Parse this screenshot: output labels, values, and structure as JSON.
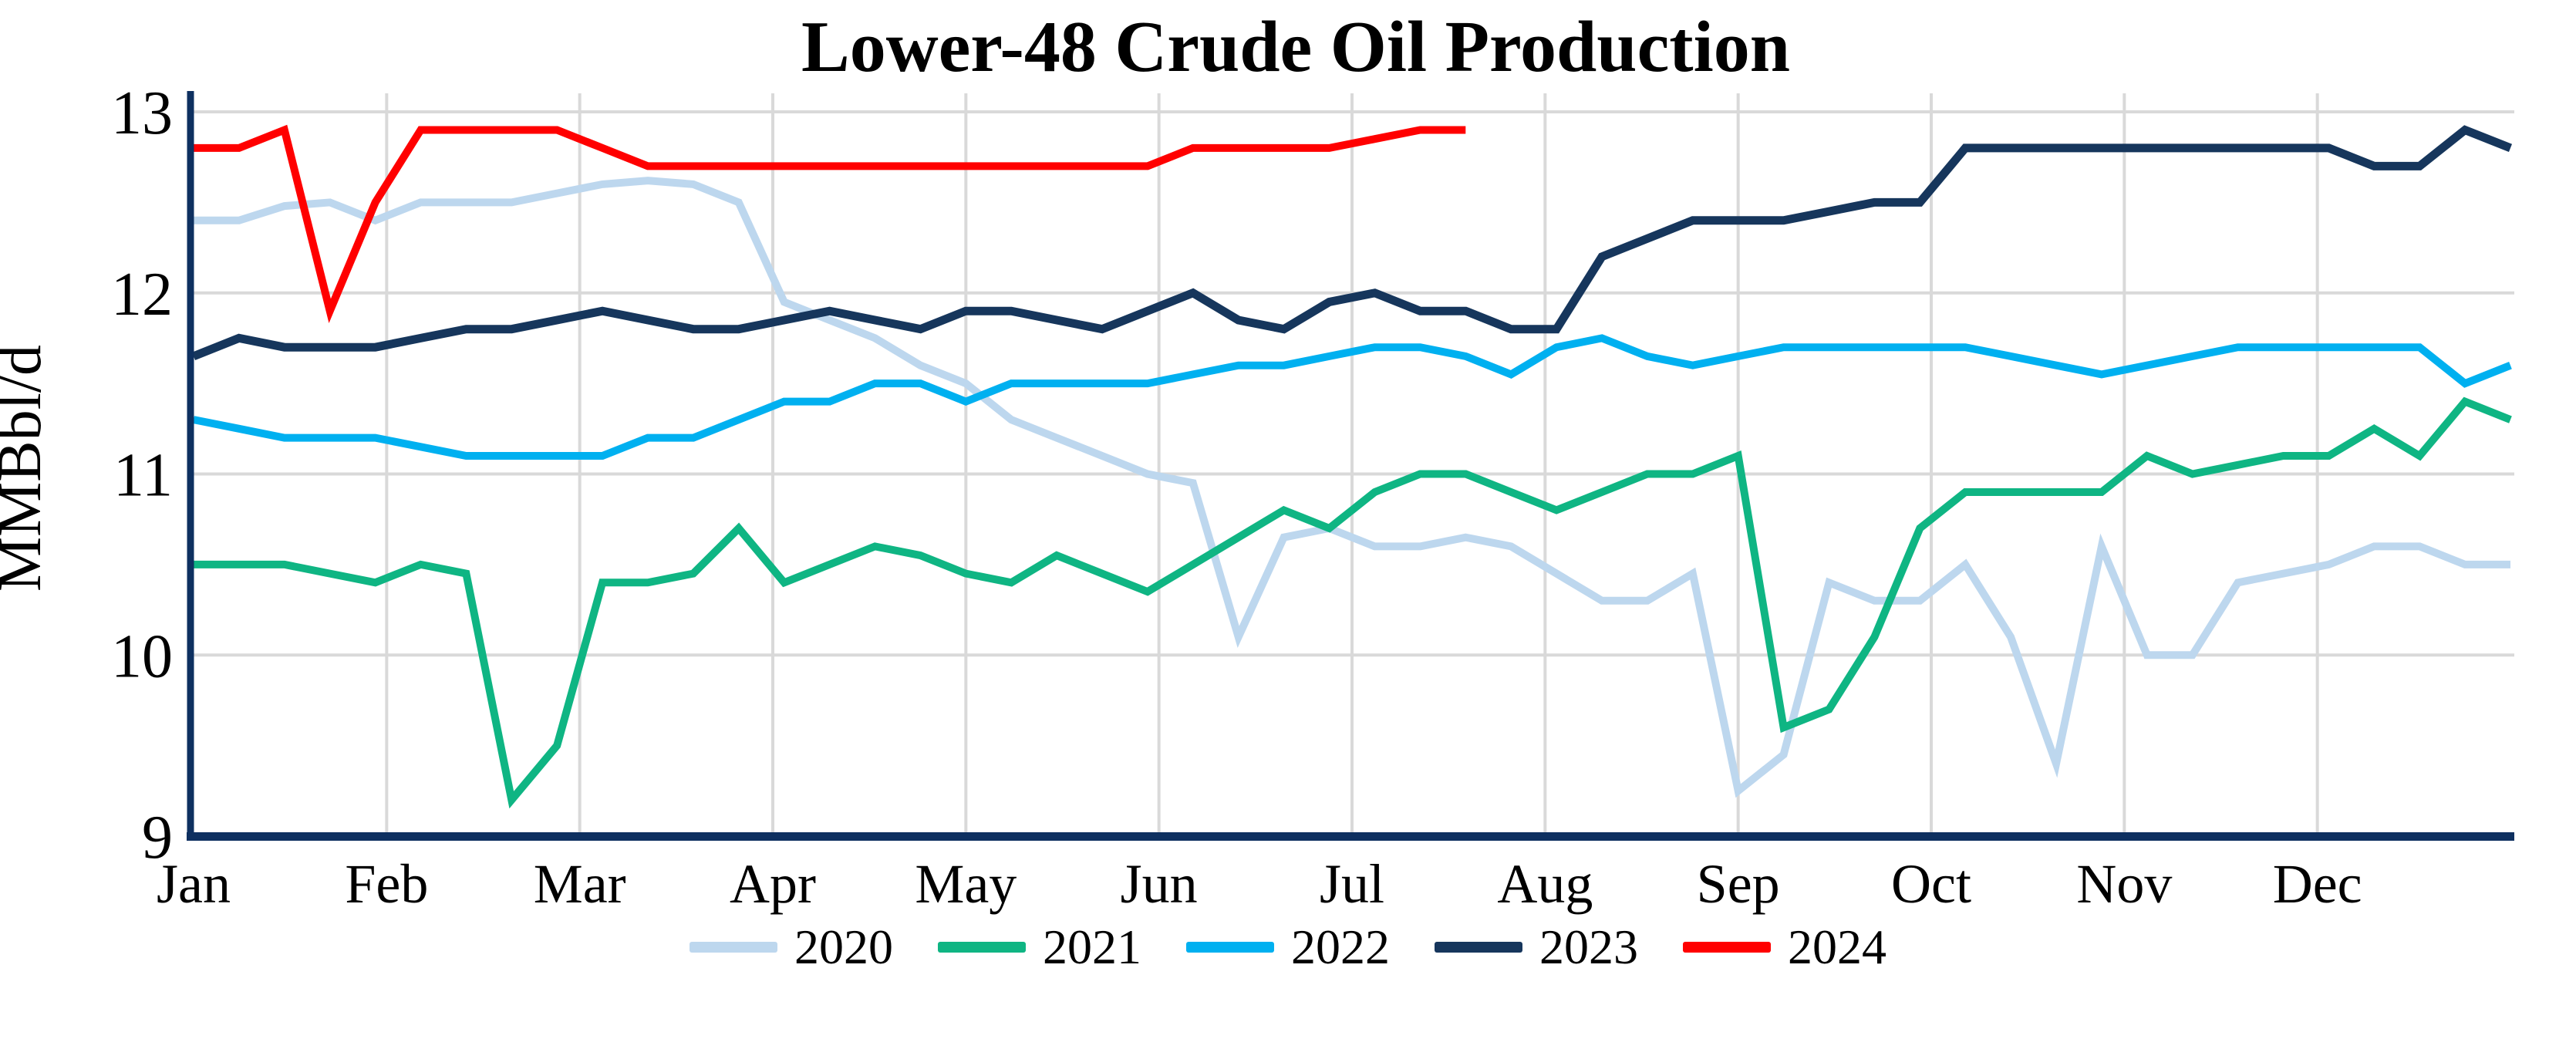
{
  "title": "Lower-48 Crude Oil Production",
  "y_axis": {
    "label": "MMBbl/d",
    "ticks": [
      13,
      12,
      11,
      10,
      9
    ],
    "min": 9,
    "max": 13
  },
  "x_axis": {
    "months": [
      "Jan",
      "Feb",
      "Mar",
      "Apr",
      "May",
      "Jun",
      "Jul",
      "Aug",
      "Sep",
      "Oct",
      "Nov",
      "Dec"
    ]
  },
  "legend": [
    "2020",
    "2021",
    "2022",
    "2023",
    "2024"
  ],
  "colors": {
    "grid": "#D9D9D9",
    "axis": "#0E3060",
    "text": "#000000",
    "background": "#FFFFFF",
    "series_2020": "#BDD7EE",
    "series_2021": "#0FB583",
    "series_2022": "#00B0F0",
    "series_2023": "#16365C",
    "series_2024": "#FF0000"
  },
  "chart_data": {
    "type": "line",
    "title": "Lower-48 Crude Oil Production",
    "xlabel": "",
    "ylabel": "MMBbl/d",
    "ylim": [
      9,
      13
    ],
    "yticks": [
      9,
      10,
      11,
      12,
      13
    ],
    "x_categories": [
      "Jan",
      "Feb",
      "Mar",
      "Apr",
      "May",
      "Jun",
      "Jul",
      "Aug",
      "Sep",
      "Oct",
      "Nov",
      "Dec"
    ],
    "x_unit": "weekly values, 52 points spanning Jan-Dec (2024 ends mid-July)",
    "grid": true,
    "legend_position": "bottom",
    "series": [
      {
        "name": "2020",
        "color": "#BDD7EE",
        "values": [
          12.4,
          12.4,
          12.48,
          12.5,
          12.4,
          12.5,
          12.5,
          12.5,
          12.55,
          12.6,
          12.62,
          12.6,
          12.5,
          11.95,
          11.85,
          11.75,
          11.6,
          11.5,
          11.3,
          11.2,
          11.1,
          11.0,
          10.95,
          10.1,
          10.65,
          10.7,
          10.6,
          10.6,
          10.65,
          10.6,
          10.45,
          10.3,
          10.3,
          10.45,
          9.25,
          9.45,
          10.4,
          10.3,
          10.3,
          10.5,
          10.1,
          9.4,
          10.6,
          10.0,
          10.0,
          10.4,
          10.45,
          10.5,
          10.6,
          10.6,
          10.5,
          10.5
        ]
      },
      {
        "name": "2021",
        "color": "#0FB583",
        "values": [
          10.5,
          10.5,
          10.5,
          10.45,
          10.4,
          10.5,
          10.45,
          9.2,
          9.5,
          10.4,
          10.4,
          10.45,
          10.7,
          10.4,
          10.5,
          10.6,
          10.55,
          10.45,
          10.4,
          10.55,
          10.45,
          10.35,
          10.5,
          10.65,
          10.8,
          10.7,
          10.9,
          11.0,
          11.0,
          10.9,
          10.8,
          10.9,
          11.0,
          11.0,
          11.1,
          9.6,
          9.7,
          10.1,
          10.7,
          10.9,
          10.9,
          10.9,
          10.9,
          11.1,
          11.0,
          11.05,
          11.1,
          11.1,
          11.25,
          11.1,
          11.4,
          11.3
        ]
      },
      {
        "name": "2022",
        "color": "#00B0F0",
        "values": [
          11.3,
          11.25,
          11.2,
          11.2,
          11.2,
          11.15,
          11.1,
          11.1,
          11.1,
          11.1,
          11.2,
          11.2,
          11.3,
          11.4,
          11.4,
          11.5,
          11.5,
          11.4,
          11.5,
          11.5,
          11.5,
          11.5,
          11.55,
          11.6,
          11.6,
          11.65,
          11.7,
          11.7,
          11.65,
          11.55,
          11.7,
          11.75,
          11.65,
          11.6,
          11.65,
          11.7,
          11.7,
          11.7,
          11.7,
          11.7,
          11.65,
          11.6,
          11.55,
          11.6,
          11.65,
          11.7,
          11.7,
          11.7,
          11.7,
          11.7,
          11.5,
          11.6
        ]
      },
      {
        "name": "2023",
        "color": "#16365C",
        "values": [
          11.65,
          11.75,
          11.7,
          11.7,
          11.7,
          11.75,
          11.8,
          11.8,
          11.85,
          11.9,
          11.85,
          11.8,
          11.8,
          11.85,
          11.9,
          11.85,
          11.8,
          11.9,
          11.9,
          11.85,
          11.8,
          11.9,
          12.0,
          11.85,
          11.8,
          11.95,
          12.0,
          11.9,
          11.9,
          11.8,
          11.8,
          12.2,
          12.3,
          12.4,
          12.4,
          12.4,
          12.45,
          12.5,
          12.5,
          12.8,
          12.8,
          12.8,
          12.8,
          12.8,
          12.8,
          12.8,
          12.8,
          12.8,
          12.7,
          12.7,
          12.9,
          12.8
        ]
      },
      {
        "name": "2024",
        "color": "#FF0000",
        "values": [
          12.8,
          12.8,
          12.9,
          11.9,
          12.5,
          12.9,
          12.9,
          12.9,
          12.9,
          12.8,
          12.7,
          12.7,
          12.7,
          12.7,
          12.7,
          12.7,
          12.7,
          12.7,
          12.7,
          12.7,
          12.7,
          12.7,
          12.8,
          12.8,
          12.8,
          12.8,
          12.85,
          12.9,
          12.9
        ]
      }
    ]
  }
}
